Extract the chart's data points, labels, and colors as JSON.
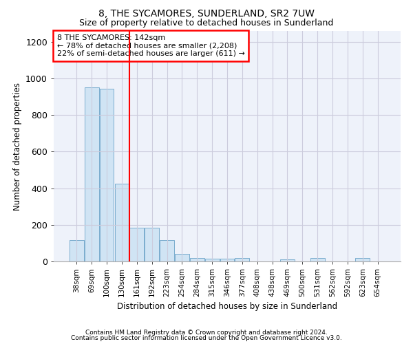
{
  "title": "8, THE SYCAMORES, SUNDERLAND, SR2 7UW",
  "subtitle": "Size of property relative to detached houses in Sunderland",
  "xlabel": "Distribution of detached houses by size in Sunderland",
  "ylabel": "Number of detached properties",
  "categories": [
    "38sqm",
    "69sqm",
    "100sqm",
    "130sqm",
    "161sqm",
    "192sqm",
    "223sqm",
    "254sqm",
    "284sqm",
    "315sqm",
    "346sqm",
    "377sqm",
    "408sqm",
    "438sqm",
    "469sqm",
    "500sqm",
    "531sqm",
    "562sqm",
    "592sqm",
    "623sqm",
    "654sqm"
  ],
  "values": [
    115,
    950,
    945,
    425,
    183,
    183,
    115,
    40,
    18,
    15,
    15,
    18,
    0,
    0,
    10,
    0,
    18,
    0,
    0,
    18,
    0
  ],
  "bar_color": "#d0e4f4",
  "bar_edge_color": "#7aadce",
  "red_line_x": 3.5,
  "annotation_text": "8 THE SYCAMORES: 142sqm\n← 78% of detached houses are smaller (2,208)\n22% of semi-detached houses are larger (611) →",
  "annotation_box_color": "white",
  "annotation_box_edge": "red",
  "ylim": [
    0,
    1260
  ],
  "yticks": [
    0,
    200,
    400,
    600,
    800,
    1000,
    1200
  ],
  "footer_line1": "Contains HM Land Registry data © Crown copyright and database right 2024.",
  "footer_line2": "Contains public sector information licensed under the Open Government Licence v3.0.",
  "bg_color": "#eef2fa",
  "title_fontsize": 10,
  "subtitle_fontsize": 9
}
